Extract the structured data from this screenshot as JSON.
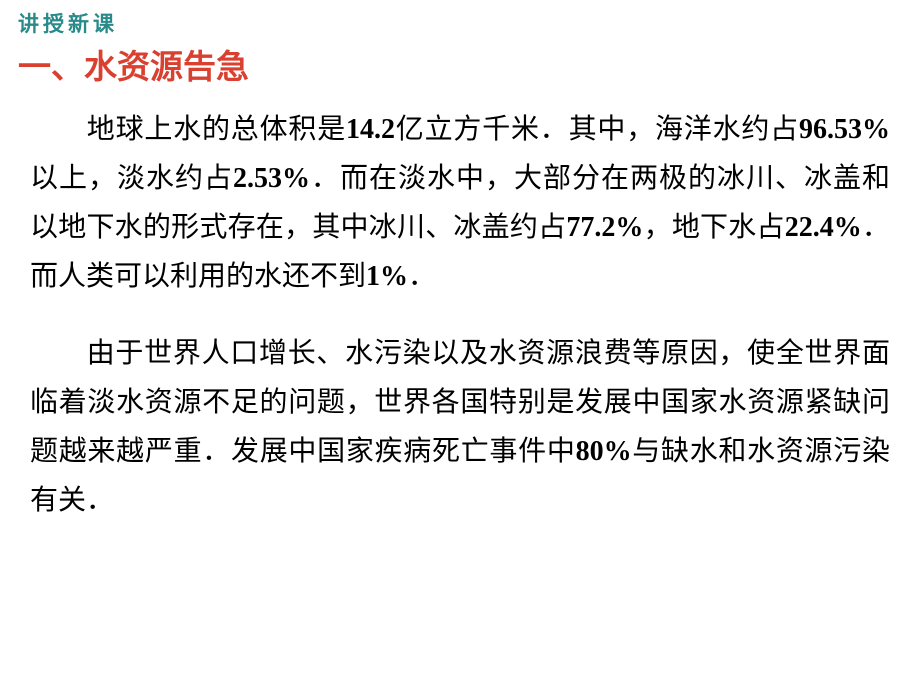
{
  "header": {
    "label": "讲授新课",
    "color": "#2a8a8a",
    "fontsize": 21
  },
  "section_title": {
    "text": "一、水资源告急",
    "color": "#d94030",
    "fontsize": 33
  },
  "paragraphs": [
    {
      "segments": [
        {
          "text": "地球上水的总体积是",
          "bold": false
        },
        {
          "text": "14.2",
          "bold": true
        },
        {
          "text": "亿立方千米．其中，海洋水约占",
          "bold": false
        },
        {
          "text": "96.53%",
          "bold": true
        },
        {
          "text": "以上，淡水约占",
          "bold": false
        },
        {
          "text": "2.53%",
          "bold": true
        },
        {
          "text": "．而在淡水中，大部分在两极的冰川、冰盖和以地下水的形式存在，其中冰川、冰盖约占",
          "bold": false
        },
        {
          "text": "77.2%",
          "bold": true
        },
        {
          "text": "，地下水占",
          "bold": false
        },
        {
          "text": "22.4%",
          "bold": true
        },
        {
          "text": "．而人类可以利用的水还不到",
          "bold": false
        },
        {
          "text": "1%",
          "bold": true
        },
        {
          "text": "．",
          "bold": false
        }
      ]
    },
    {
      "segments": [
        {
          "text": "由于世界人口增长、水污染以及水资源浪费等原因，使全世界面临着淡水资源不足的问题，世界各国特别是发展中国家水资源紧缺问题越来越严重．发展中国家疾病死亡事件中",
          "bold": false
        },
        {
          "text": "80%",
          "bold": true
        },
        {
          "text": "与缺水和水资源污染有关．",
          "bold": false
        }
      ]
    }
  ],
  "styling": {
    "body_fontsize": 28,
    "body_lineheight": 1.75,
    "text_color": "#000000",
    "background_color": "#ffffff",
    "indent_chars": 2
  }
}
